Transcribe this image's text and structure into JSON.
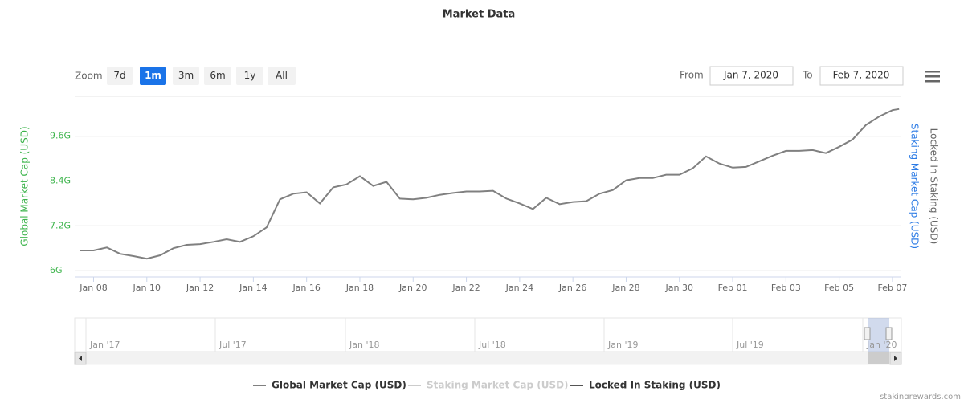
{
  "ui": {
    "zoom_label": "Zoom",
    "buttons": [
      "7d",
      "1m",
      "3m",
      "6m",
      "1y",
      "All"
    ],
    "selected": 1,
    "from_label": "From",
    "from": "Jan 7, 2020",
    "to_label": "To",
    "to": "Feb 7, 2020",
    "navigator_labels": [
      "Jan '17",
      "Jul '17",
      "Jan '18",
      "Jul '18",
      "Jan '19",
      "Jul '19",
      "Jan '20"
    ],
    "watermark": "stakingrewards.com"
  },
  "chart_data": {
    "type": "line",
    "title": "Market Data",
    "ylabel": "Global Market Cap (USD)",
    "ylabel_color": "#3cb44b",
    "right_axis_titles": [
      {
        "text": "Staking Market Cap (USD)",
        "color": "#2c7be5"
      },
      {
        "text": "Locked In Staking (USD)",
        "color": "#666666"
      }
    ],
    "x": [
      "2020-01-07T12:00",
      "2020-01-08T00:00",
      "2020-01-08T12:00",
      "2020-01-09T00:00",
      "2020-01-09T12:00",
      "2020-01-10T00:00",
      "2020-01-10T12:00",
      "2020-01-11T00:00",
      "2020-01-11T12:00",
      "2020-01-12T00:00",
      "2020-01-12T12:00",
      "2020-01-13T00:00",
      "2020-01-13T12:00",
      "2020-01-14T00:00",
      "2020-01-14T12:00",
      "2020-01-15T00:00",
      "2020-01-15T12:00",
      "2020-01-16T00:00",
      "2020-01-16T12:00",
      "2020-01-17T00:00",
      "2020-01-17T12:00",
      "2020-01-18T00:00",
      "2020-01-18T12:00",
      "2020-01-19T00:00",
      "2020-01-19T12:00",
      "2020-01-20T00:00",
      "2020-01-20T12:00",
      "2020-01-21T00:00",
      "2020-01-21T12:00",
      "2020-01-22T00:00",
      "2020-01-22T12:00",
      "2020-01-23T00:00",
      "2020-01-23T12:00",
      "2020-01-24T00:00",
      "2020-01-24T12:00",
      "2020-01-25T00:00",
      "2020-01-25T12:00",
      "2020-01-26T00:00",
      "2020-01-26T12:00",
      "2020-01-27T00:00",
      "2020-01-27T12:00",
      "2020-01-28T00:00",
      "2020-01-28T12:00",
      "2020-01-29T00:00",
      "2020-01-29T12:00",
      "2020-01-30T00:00",
      "2020-01-30T12:00",
      "2020-01-31T00:00",
      "2020-01-31T12:00",
      "2020-02-01T00:00",
      "2020-02-01T12:00",
      "2020-02-02T00:00",
      "2020-02-02T12:00",
      "2020-02-03T00:00",
      "2020-02-03T12:00",
      "2020-02-04T00:00",
      "2020-02-04T12:00",
      "2020-02-05T00:00",
      "2020-02-05T12:00",
      "2020-02-06T00:00",
      "2020-02-06T12:00",
      "2020-02-07T00:00",
      "2020-02-07T06:00"
    ],
    "series": [
      {
        "name": "Global Market Cap (USD)",
        "color": "#808080",
        "values": [
          6540000000.0,
          6540000000.0,
          6620000000.0,
          6450000000.0,
          6390000000.0,
          6320000000.0,
          6410000000.0,
          6600000000.0,
          6690000000.0,
          6710000000.0,
          6770000000.0,
          6840000000.0,
          6770000000.0,
          6920000000.0,
          7160000000.0,
          7910000000.0,
          8060000000.0,
          8100000000.0,
          7800000000.0,
          8230000000.0,
          8310000000.0,
          8530000000.0,
          8270000000.0,
          8380000000.0,
          7930000000.0,
          7910000000.0,
          7950000000.0,
          8030000000.0,
          8080000000.0,
          8120000000.0,
          8120000000.0,
          8140000000.0,
          7930000000.0,
          7800000000.0,
          7650000000.0,
          7950000000.0,
          7780000000.0,
          7840000000.0,
          7860000000.0,
          8060000000.0,
          8160000000.0,
          8420000000.0,
          8480000000.0,
          8480000000.0,
          8570000000.0,
          8570000000.0,
          8740000000.0,
          9060000000.0,
          8870000000.0,
          8760000000.0,
          8780000000.0,
          8930000000.0,
          9080000000.0,
          9210000000.0,
          9210000000.0,
          9230000000.0,
          9150000000.0,
          9320000000.0,
          9510000000.0,
          9900000000.0,
          10130000000.0,
          10300000000.0,
          10330000000.0
        ]
      },
      {
        "name": "Staking Market Cap (USD)",
        "color": "#cccccc",
        "visible": false
      },
      {
        "name": "Locked In Staking (USD)",
        "color": "#555555"
      }
    ],
    "xlim": [
      "2020-01-07T07:00",
      "2020-02-07T08:00"
    ],
    "xticks": [
      {
        "value": "2020-01-08",
        "label": "Jan 08"
      },
      {
        "value": "2020-01-10",
        "label": "Jan 10"
      },
      {
        "value": "2020-01-12",
        "label": "Jan 12"
      },
      {
        "value": "2020-01-14",
        "label": "Jan 14"
      },
      {
        "value": "2020-01-16",
        "label": "Jan 16"
      },
      {
        "value": "2020-01-18",
        "label": "Jan 18"
      },
      {
        "value": "2020-01-20",
        "label": "Jan 20"
      },
      {
        "value": "2020-01-22",
        "label": "Jan 22"
      },
      {
        "value": "2020-01-24",
        "label": "Jan 24"
      },
      {
        "value": "2020-01-26",
        "label": "Jan 26"
      },
      {
        "value": "2020-01-28",
        "label": "Jan 28"
      },
      {
        "value": "2020-01-30",
        "label": "Jan 30"
      },
      {
        "value": "2020-02-01",
        "label": "Feb 01"
      },
      {
        "value": "2020-02-03",
        "label": "Feb 03"
      },
      {
        "value": "2020-02-05",
        "label": "Feb 05"
      },
      {
        "value": "2020-02-07",
        "label": "Feb 07"
      }
    ],
    "ylim": [
      5830000000.0,
      10670000000.0
    ],
    "yticks": [
      {
        "value": 6000000000.0,
        "label": "6G"
      },
      {
        "value": 7200000000.0,
        "label": "7.2G"
      },
      {
        "value": 8400000000.0,
        "label": "8.4G"
      },
      {
        "value": 9600000000.0,
        "label": "9.6G"
      }
    ],
    "grid": true
  }
}
